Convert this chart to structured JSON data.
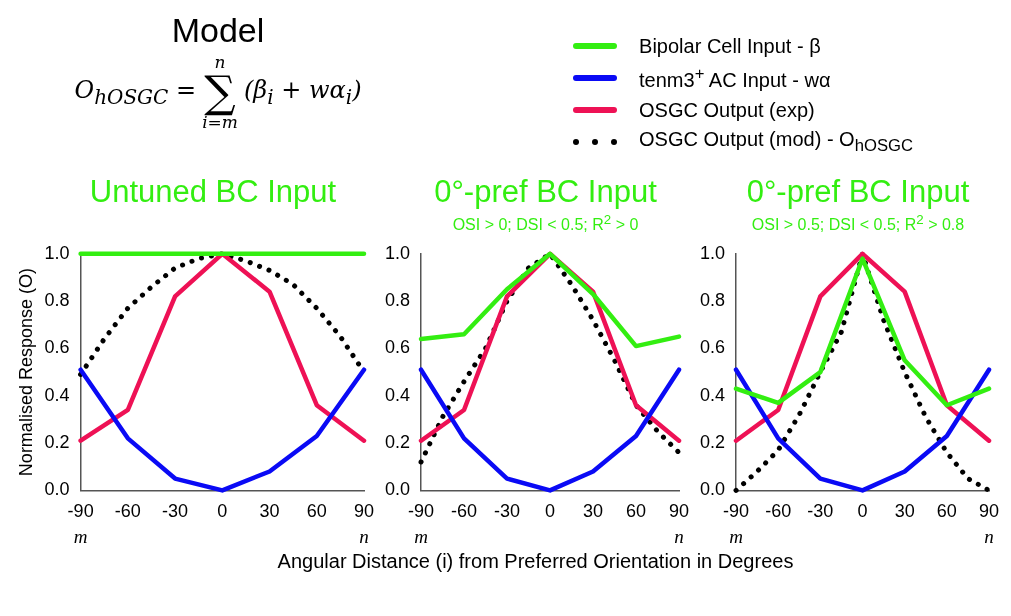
{
  "chart_data": [
    {
      "type": "other",
      "title": "Model",
      "annotations": [
        "O$_{hOSGC}$ =",
        "n",
        "∑",
        "i=m",
        "(β$_{i}$ + wα$_{i}$)"
      ]
    },
    {
      "type": "line",
      "title": "Untuned BC Input",
      "ylabel": "Normalised Response (O)",
      "legend": "top right",
      "x": [
        -90,
        -60,
        -30,
        0,
        30,
        60,
        90
      ],
      "xlim": [
        -90,
        90
      ],
      "xticks": [
        -90,
        -60,
        -30,
        0,
        30,
        60,
        90
      ],
      "ylim": [
        0,
        1
      ],
      "yticks": [
        {
          "value": 0,
          "label": "0.0"
        },
        {
          "value": 0.2,
          "label": "0.2"
        },
        {
          "value": 0.4,
          "label": "0.4"
        },
        {
          "value": 0.6,
          "label": "0.6"
        },
        {
          "value": 0.8,
          "label": "0.8"
        },
        {
          "value": 1,
          "label": "1.0"
        }
      ],
      "grid": false,
      "marker": "none",
      "annotations": [
        "m",
        "n"
      ],
      "series": [
        {
          "name": "Bipolar Cell Input - β",
          "color": "#33ee11",
          "line_style": "solid",
          "values": [
            1,
            1,
            1,
            1,
            1,
            1,
            1
          ]
        },
        {
          "name": "tenm3$^{+}$ AC Input - wα",
          "color": "#0a0af5",
          "line_style": "solid",
          "values": [
            0.51,
            0.22,
            0.05,
            0,
            0.08,
            0.23,
            0.51
          ]
        },
        {
          "name": "OSGC Output (exp)",
          "color": "#ee1155",
          "line_style": "solid",
          "values": [
            0.21,
            0.34,
            0.82,
            1,
            0.84,
            0.36,
            0.21
          ]
        },
        {
          "name": "OSGC Output (mod) - O$_{hOSGC}$",
          "color": "#000000",
          "line_style": "dotted",
          "x": [
            -90,
            -75,
            -60,
            -45,
            -30,
            -15,
            0,
            15,
            30,
            45,
            60,
            75,
            90
          ],
          "values": [
            0.49,
            0.64,
            0.77,
            0.86,
            0.94,
            0.98,
            1,
            0.97,
            0.93,
            0.87,
            0.77,
            0.65,
            0.5
          ]
        }
      ]
    },
    {
      "type": "line",
      "title": "0°-pref BC Input",
      "subtitle": "OSI > 0; DSI < 0.5; R$^{2}$ > 0",
      "xlabel": "Angular Distance (i) from Preferred Orientation in Degrees",
      "x": [
        -90,
        -60,
        -30,
        0,
        30,
        60,
        90
      ],
      "xlim": [
        -90,
        90
      ],
      "xticks": [
        -90,
        -60,
        -30,
        0,
        30,
        60,
        90
      ],
      "ylim": [
        0,
        1
      ],
      "yticks": [
        {
          "value": 0,
          "label": "0.0"
        },
        {
          "value": 0.2,
          "label": "0.2"
        },
        {
          "value": 0.4,
          "label": "0.4"
        },
        {
          "value": 0.6,
          "label": "0.6"
        },
        {
          "value": 0.8,
          "label": "0.8"
        },
        {
          "value": 1,
          "label": "1.0"
        }
      ],
      "grid": false,
      "marker": "none",
      "annotations": [
        "m",
        "n"
      ],
      "series": [
        {
          "color": "#33ee11",
          "line_style": "solid",
          "values": [
            0.64,
            0.66,
            0.85,
            1,
            0.83,
            0.61,
            0.65
          ]
        },
        {
          "color": "#0a0af5",
          "line_style": "solid",
          "values": [
            0.51,
            0.22,
            0.05,
            0,
            0.08,
            0.23,
            0.51
          ]
        },
        {
          "color": "#ee1155",
          "line_style": "solid",
          "values": [
            0.21,
            0.34,
            0.82,
            1,
            0.84,
            0.36,
            0.21
          ]
        },
        {
          "color": "#000000",
          "line_style": "dotted",
          "x": [
            -90,
            -75,
            -60,
            -45,
            -30,
            -15,
            0,
            15,
            30,
            45,
            60,
            75,
            90
          ],
          "values": [
            0.12,
            0.31,
            0.46,
            0.6,
            0.8,
            0.94,
            1,
            0.87,
            0.72,
            0.55,
            0.36,
            0.25,
            0.16
          ]
        }
      ]
    },
    {
      "type": "line",
      "title": "0°-pref BC Input",
      "subtitle": "OSI > 0.5; DSI < 0.5; R$^{2}$ > 0.8",
      "x": [
        -90,
        -60,
        -30,
        0,
        30,
        60,
        90
      ],
      "xlim": [
        -90,
        90
      ],
      "xticks": [
        -90,
        -60,
        -30,
        0,
        30,
        60,
        90
      ],
      "ylim": [
        0,
        1
      ],
      "yticks": [
        {
          "value": 0,
          "label": "0.0"
        },
        {
          "value": 0.2,
          "label": "0.2"
        },
        {
          "value": 0.4,
          "label": "0.4"
        },
        {
          "value": 0.6,
          "label": "0.6"
        },
        {
          "value": 0.8,
          "label": "0.8"
        },
        {
          "value": 1,
          "label": "1.0"
        }
      ],
      "grid": false,
      "marker": "none",
      "annotations": [
        "m",
        "n"
      ],
      "series": [
        {
          "color": "#33ee11",
          "line_style": "solid",
          "values": [
            0.43,
            0.37,
            0.5,
            0.98,
            0.55,
            0.36,
            0.43
          ]
        },
        {
          "color": "#0a0af5",
          "line_style": "solid",
          "values": [
            0.51,
            0.22,
            0.05,
            0,
            0.08,
            0.23,
            0.51
          ]
        },
        {
          "color": "#ee1155",
          "line_style": "solid",
          "values": [
            0.21,
            0.34,
            0.82,
            1,
            0.84,
            0.36,
            0.21
          ]
        },
        {
          "color": "#000000",
          "line_style": "dotted",
          "x": [
            -90,
            -75,
            -60,
            -45,
            -30,
            -15,
            0,
            15,
            30,
            45,
            60,
            75,
            90
          ],
          "values": [
            0,
            0.08,
            0.17,
            0.32,
            0.5,
            0.67,
            1,
            0.72,
            0.5,
            0.31,
            0.16,
            0.05,
            0
          ]
        }
      ]
    }
  ]
}
